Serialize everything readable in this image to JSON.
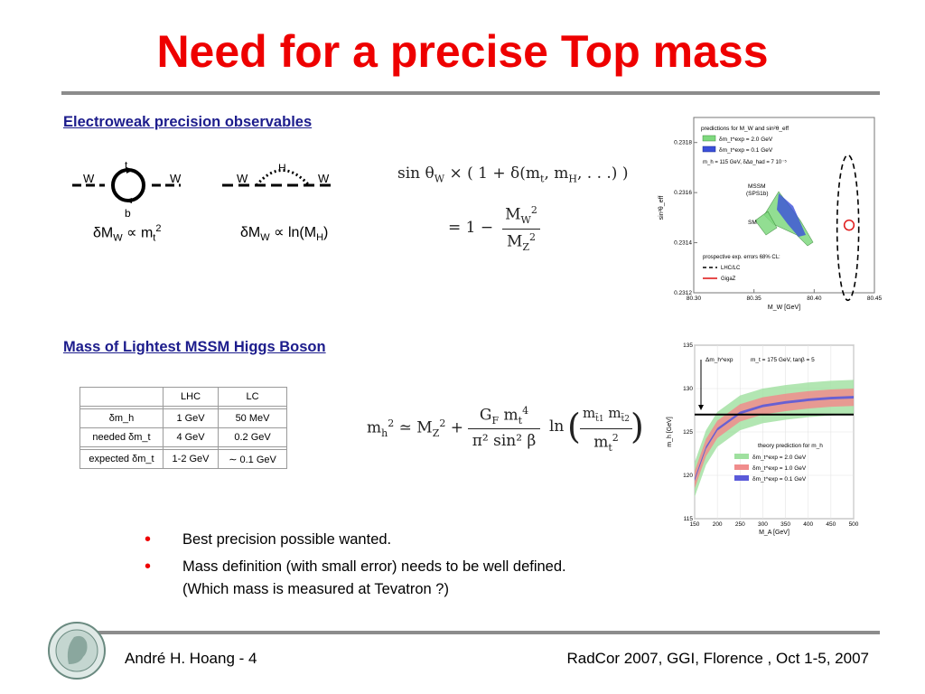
{
  "slide": {
    "title": "Need for a precise Top mass",
    "section1": "Electroweak precision observables",
    "section2": "Mass of Lightest MSSM Higgs Boson"
  },
  "diagram_left": {
    "label_w_left": "W",
    "label_w_right": "W",
    "label_top": "t",
    "label_bottom": "b",
    "relation_main": "δM",
    "relation_sub": "W",
    "relation_rest": " ∝ m",
    "relation_sub2": "t",
    "relation_sup": "2"
  },
  "diagram_right": {
    "label_w_left": "W",
    "label_w_right": "W",
    "label_h": "H",
    "relation_main": "δM",
    "relation_sub": "W",
    "relation_rest": " ∝ ln(M",
    "relation_sub2": "H",
    "relation_end": ")"
  },
  "formula1": {
    "line1_lhs": "sin θ",
    "line1_sub": "W",
    "line1_rhs": "×  ( 1 + δ(m",
    "line1_sub2": "t",
    "line1_mid": ", m",
    "line1_sub3": "H",
    "line1_end": ", . . .) )",
    "line2": "= 1 −",
    "num": "M",
    "num_sub": "W",
    "num_sup": "2",
    "den": "M",
    "den_sub": "Z",
    "den_sup": "2"
  },
  "formula2": {
    "lhs": "m",
    "lhs_sub": "h",
    "lhs_sup": "2",
    "approx": "≃  M",
    "approx_sub": "Z",
    "approx_sup": "2",
    "plus": "+",
    "frac_num": "G",
    "frac_num_sub": "F",
    "frac_num2": " m",
    "frac_num2_sub": "t",
    "frac_num2_sup": "4",
    "frac_den": "π² sin² β",
    "ln": "ln",
    "ln_num": "m",
    "ln_num_sub1": "t̃1",
    "ln_num2": " m",
    "ln_num_sub2": "t̃2",
    "ln_den": "m",
    "ln_den_sub": "t",
    "ln_den_sup": "2"
  },
  "table": {
    "headers": [
      "",
      "LHC",
      "LC"
    ],
    "rows": [
      [
        "δm_h",
        "1 GeV",
        "50 MeV"
      ],
      [
        "needed δm_t",
        "4 GeV",
        "0.2 GeV"
      ],
      [
        "expected δm_t",
        "1-2 GeV",
        "∼ 0.1 GeV"
      ]
    ]
  },
  "chart_data": [
    {
      "type": "scatter",
      "title": "predictions for M_W and sin²θ_eff",
      "xlabel": "M_W [GeV]",
      "ylabel": "sin²θ_eff",
      "xlim": [
        80.3,
        80.45
      ],
      "ylim": [
        0.2312,
        0.2319
      ],
      "xticks": [
        "80.30",
        "80.35",
        "80.40",
        "80.45"
      ],
      "yticks": [
        "0.2312",
        "0.2314",
        "0.2316",
        "0.2318"
      ],
      "legend": [
        {
          "label": "δm_t^exp = 2.0 GeV",
          "color": "#7fd97f"
        },
        {
          "label": "δm_t^exp = 0.1 GeV",
          "color": "#3b4fd9"
        }
      ],
      "note": "m_h = 115 GeV, δΔα_had = 7 10⁻⁵",
      "region_labels": [
        "MSSM",
        "(SPS1b)",
        "SM"
      ],
      "errors_title": "prospective exp. errors 68% CL:",
      "errors_legend": [
        {
          "label": "LHC/LC",
          "style": "dashed",
          "color": "#000000"
        },
        {
          "label": "GigaZ",
          "style": "solid",
          "color": "#e02020"
        }
      ],
      "ellipse_lhc": {
        "center": [
          80.428,
          0.23146
        ],
        "radius_x": 0.009,
        "radius_y": 0.00029
      },
      "ellipse_gigaz": {
        "center": [
          80.429,
          0.23147
        ],
        "radius_x": 0.004,
        "radius_y": 2e-05
      }
    },
    {
      "type": "line",
      "xlabel": "M_A [GeV]",
      "ylabel": "m_h [GeV]",
      "xlim": [
        150,
        500
      ],
      "ylim": [
        115,
        135
      ],
      "xticks": [
        "150",
        "200",
        "250",
        "300",
        "350",
        "400",
        "450",
        "500"
      ],
      "yticks": [
        "115",
        "120",
        "125",
        "130",
        "135"
      ],
      "annotation": "m_t = 175 GeV, tanβ = 5",
      "arrow_label": "Δm_h^exp",
      "measured_line": 127,
      "legend_title": "theory prediction for m_h",
      "legend": [
        {
          "label": "δm_t^exp = 2.0 GeV",
          "color": "#7fd97f"
        },
        {
          "label": "δm_t^exp = 1.0 GeV",
          "color": "#f08c8c"
        },
        {
          "label": "δm_t^exp = 0.1 GeV",
          "color": "#5a5ad9"
        }
      ],
      "x": [
        150,
        175,
        200,
        250,
        300,
        350,
        400,
        450,
        500
      ],
      "series": [
        {
          "values": [
            119.5,
            123.2,
            125.3,
            127.2,
            128.0,
            128.4,
            128.7,
            128.9,
            129.0
          ]
        }
      ],
      "band_halfwidth": {
        "green": 2.0,
        "red": 1.0,
        "blue": 0.15
      }
    }
  ],
  "bullets": [
    "Best precision possible wanted.",
    "Mass definition (with small error) needs to be well defined. (Which mass is measured at Tevatron ?)"
  ],
  "bullet_symbol": "•",
  "footer": {
    "left": "André H. Hoang  - 4",
    "right": "RadCor 2007, GGI, Florence , Oct 1-5, 2007"
  }
}
